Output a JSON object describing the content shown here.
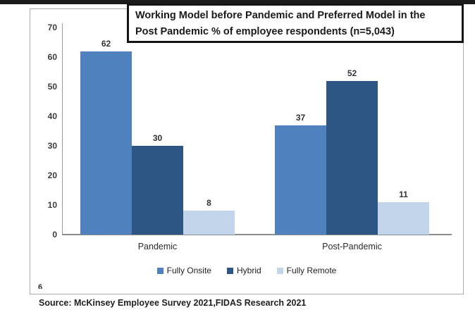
{
  "title_box": {
    "line1": "Working Model before Pandemic and Preferred Model in the",
    "line2": "Post Pandemic % of employee respondents (n=5,043)"
  },
  "source": "Source: McKinsey Employee Survey 2021,FIDAS Research 2021",
  "artifact": {
    "partial_glyph": "6"
  },
  "chart_data": {
    "type": "bar",
    "title": "Working Model before Pandemic and Preferred Model in the Post Pandemic % of employee respondents (n=5,043)",
    "categories": [
      "Pandemic",
      "Post-Pandemic"
    ],
    "series": [
      {
        "name": "Fully Onsite",
        "color": "#4E81BD",
        "values": [
          62,
          37
        ]
      },
      {
        "name": "Hybrid",
        "color": "#2D5684",
        "values": [
          30,
          52
        ]
      },
      {
        "name": "Fully Remote",
        "color": "#C3D5EA",
        "values": [
          8,
          11
        ]
      }
    ],
    "ylim": [
      0,
      70
    ],
    "yticks": [
      0,
      10,
      20,
      30,
      40,
      50,
      60,
      70
    ],
    "xlabel": "",
    "ylabel": "",
    "grid": false,
    "data_labels": true,
    "legend_position": "bottom",
    "source_note": "Source: McKinsey Employee Survey 2021,FIDAS Research 2021"
  }
}
